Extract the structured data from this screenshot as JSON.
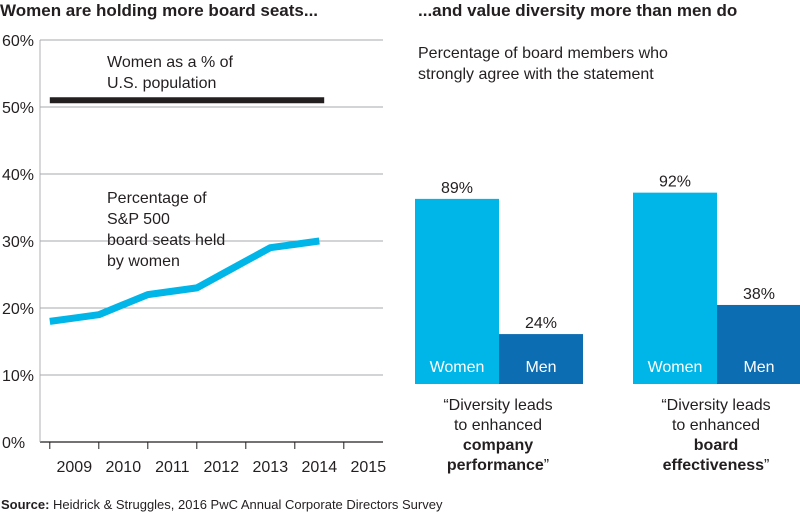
{
  "left_title": "Women are holding more board seats...",
  "right_title": "...and value diversity more than men do",
  "population_note": [
    "Women as a % of",
    "U.S. population"
  ],
  "seats_note": [
    "Percentage of",
    "S&P 500",
    "board seats held",
    "by women"
  ],
  "bar_subtitle": [
    "Percentage of board members who",
    "strongly agree with the statement"
  ],
  "captions": [
    {
      "lines": [
        "“Diversity leads",
        "to enhanced"
      ],
      "bold": [
        "company",
        "performance"
      ],
      "end": "”"
    },
    {
      "lines": [
        "“Diversity leads",
        "to enhanced"
      ],
      "bold": [
        "board",
        "effectiveness"
      ],
      "end": "”"
    }
  ],
  "source": {
    "label": "Source:",
    "text": " Heidrick & Struggles, 2016 PwC Annual Corporate Directors Survey"
  },
  "colors": {
    "women": "#00b5e8",
    "men": "#0d6db3",
    "reference_line": "#231f20",
    "grid": "#a7a9ac"
  },
  "chart_data": [
    {
      "type": "line",
      "title": "Women are holding more board seats...",
      "x_tick_labels": [
        "2009",
        "2010",
        "2011",
        "2012",
        "2013",
        "2014",
        "2015"
      ],
      "y_tick_labels": [
        "0%",
        "10%",
        "20%",
        "30%",
        "40%",
        "50%",
        "60%"
      ],
      "ylim": [
        0,
        60
      ],
      "xlim": [
        2008.3,
        2015.3
      ],
      "grid": true,
      "series": [
        {
          "name": "Percentage of S&P 500 board seats held by women",
          "x": [
            2008.5,
            2009.0,
            2009.5,
            2010.0,
            2010.5,
            2011.0,
            2011.5,
            2012.0,
            2012.5,
            2013.0,
            2013.5,
            2014.0
          ],
          "y": [
            18,
            18.5,
            19,
            20.5,
            22,
            22.5,
            23,
            25,
            27,
            29,
            29.5,
            30
          ]
        },
        {
          "name": "Women as a % of U.S. population",
          "x": [
            2008.5,
            2014.1
          ],
          "y": [
            51,
            51
          ]
        }
      ]
    },
    {
      "type": "bar",
      "title": "...and value diversity more than men do",
      "subtitle": "Percentage of board members who strongly agree with the statement",
      "ylim": [
        0,
        100
      ],
      "groups": [
        {
          "label": "“Diversity leads to enhanced company performance”",
          "bars": [
            {
              "name": "Women",
              "value": 89,
              "label": "89%"
            },
            {
              "name": "Men",
              "value": 24,
              "label": "24%"
            }
          ]
        },
        {
          "label": "“Diversity leads to enhanced board effectiveness”",
          "bars": [
            {
              "name": "Women",
              "value": 92,
              "label": "92%"
            },
            {
              "name": "Men",
              "value": 38,
              "label": "38%"
            }
          ]
        }
      ]
    }
  ]
}
